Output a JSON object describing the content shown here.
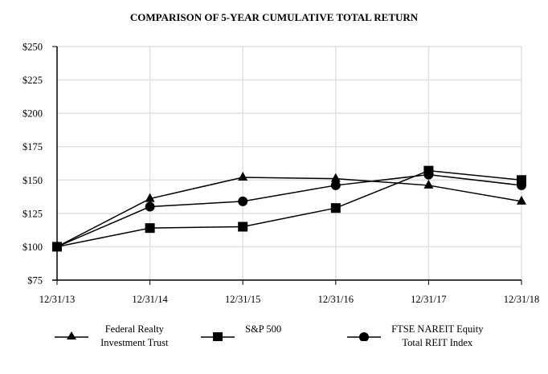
{
  "chart_data": {
    "type": "line",
    "title": "COMPARISON OF 5-YEAR CUMULATIVE TOTAL RETURN",
    "xlabel": "",
    "ylabel": "",
    "categories": [
      "12/31/13",
      "12/31/14",
      "12/31/15",
      "12/31/16",
      "12/31/17",
      "12/31/18"
    ],
    "y_ticks": [
      "$75",
      "$100",
      "$125",
      "$150",
      "$175",
      "$200",
      "$225",
      "$250"
    ],
    "ylim": [
      75,
      250
    ],
    "grid": true,
    "legend_position": "bottom",
    "series": [
      {
        "name": "Federal Realty Investment Trust",
        "marker": "triangle",
        "values": [
          100,
          136,
          152,
          151,
          146,
          134
        ]
      },
      {
        "name": "S&P 500",
        "marker": "square",
        "values": [
          100,
          114,
          115,
          129,
          157,
          150
        ]
      },
      {
        "name": "FTSE NAREIT Equity Total REIT Index",
        "marker": "circle",
        "values": [
          100,
          130,
          134,
          146,
          154,
          146
        ]
      }
    ]
  },
  "legend": {
    "frt_line1": "Federal Realty",
    "frt_line2": "Investment Trust",
    "sp": "S&P 500",
    "reit_line1": "FTSE NAREIT Equity",
    "reit_line2": "Total REIT Index"
  }
}
